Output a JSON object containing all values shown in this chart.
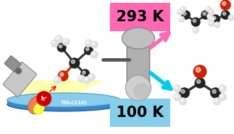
{
  "fig_width": 3.3,
  "fig_height": 1.89,
  "dpi": 100,
  "bg_color": "#ffffff",
  "box_293_color": "#FF69B4",
  "box_293_text": "293 K",
  "box_100_color": "#87CEEB",
  "box_100_text": "100 K",
  "tio2_text": "TiO₂(110)",
  "h_plus_text": "h⁺",
  "lamp_body_color": "#C8C8C8",
  "lamp_head_color": "#FFA040",
  "lamp_yellow_color": "#FFFF80",
  "cone_color": "#FFFFA0",
  "tio2_top_color": "#88CCEE",
  "tio2_side_color": "#3388CC",
  "tip_color": "#B8B8B8",
  "tip_dark": "#888888",
  "carbon_color": "#222222",
  "oxygen_color": "#CC2200",
  "hydrogen_color": "#E0E0E0"
}
